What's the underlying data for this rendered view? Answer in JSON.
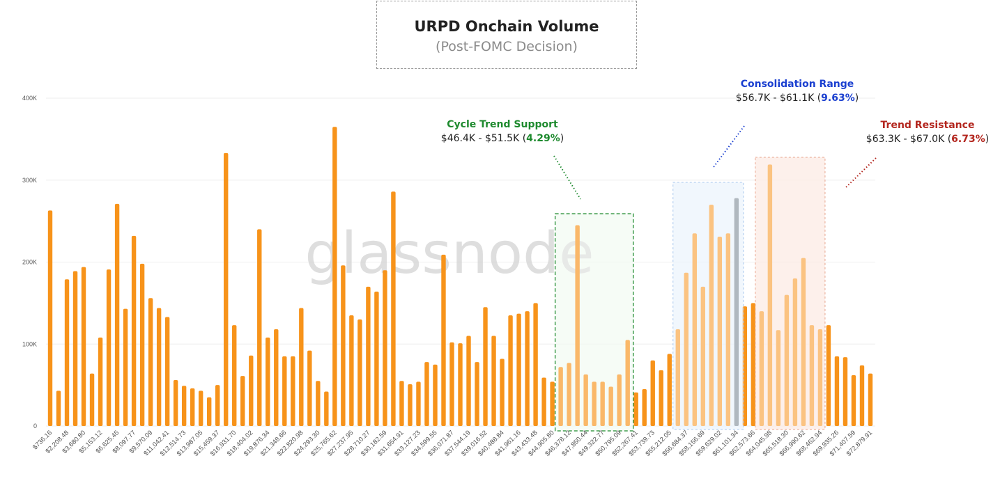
{
  "title": "URPD Onchain Volume",
  "subtitle": "(Post-FOMC Decision)",
  "watermark": "glassnode",
  "annotations": {
    "support": {
      "heading": "Cycle Trend Support",
      "range": "$46.4K - $51.5K (",
      "pct": "4.29%",
      "close": ")",
      "color": "#1e8a2e"
    },
    "consolidation": {
      "heading": "Consolidation Range",
      "range": "$56.7K - $61.1K (",
      "pct": "9.63%",
      "close": ")",
      "color": "#1a3fd0"
    },
    "resistance": {
      "heading": "Trend Resistance",
      "range": "$63.3K - $67.0K (",
      "pct": "6.73%",
      "close": ")",
      "color": "#b3261e"
    }
  },
  "colors": {
    "bar": "#f7931a",
    "current_bar": "#6f7e8b",
    "grid": "#eeeeee",
    "axis_text": "#555555"
  },
  "chart_data": {
    "type": "bar",
    "ylim": [
      0,
      400000
    ],
    "yticks": [
      {
        "value": 0,
        "label": "0"
      },
      {
        "value": 100000,
        "label": "100K"
      },
      {
        "value": 200000,
        "label": "200K"
      },
      {
        "value": 300000,
        "label": "300K"
      },
      {
        "value": 400000,
        "label": "400K"
      }
    ],
    "x_tick_labels": [
      "$736.16",
      "$2,208.48",
      "$3,680.80",
      "$5,153.12",
      "$6,625.45",
      "$8,097.77",
      "$9,570.09",
      "$11,042.41",
      "$12,514.73",
      "$13,987.05",
      "$15,459.37",
      "$16,931.70",
      "$18,404.02",
      "$19,876.34",
      "$21,348.66",
      "$22,820.98",
      "$24,293.30",
      "$25,765.62",
      "$27,237.95",
      "$28,710.27",
      "$30,182.59",
      "$31,654.91",
      "$33,127.23",
      "$34,599.55",
      "$36,071.87",
      "$37,544.19",
      "$39,016.52",
      "$40,488.84",
      "$41,961.16",
      "$43,433.48",
      "$44,905.80",
      "$46,378.12",
      "$47,850.44",
      "$49,322.77",
      "$50,795.09",
      "$52,267.41",
      "$53,739.73",
      "$55,212.05",
      "$56,684.37",
      "$58,156.69",
      "$59,629.02",
      "$61,101.34",
      "$62,573.66",
      "$64,045.98",
      "$65,518.30",
      "$66,990.62",
      "$68,462.94",
      "$69,935.26",
      "$71,407.59",
      "$72,879.91"
    ],
    "values": [
      263000,
      43000,
      179000,
      189000,
      194000,
      64000,
      108000,
      191000,
      271000,
      143000,
      232000,
      198000,
      156000,
      144000,
      133000,
      56000,
      49000,
      46000,
      43000,
      35000,
      50000,
      333000,
      123000,
      61000,
      86000,
      240000,
      108000,
      118000,
      85000,
      85000,
      144000,
      92000,
      55000,
      42000,
      365000,
      196000,
      135000,
      130000,
      170000,
      164000,
      190000,
      286000,
      55000,
      51000,
      54000,
      78000,
      75000,
      209000,
      102000,
      101000,
      110000,
      78000,
      145000,
      110000,
      82000,
      135000,
      137000,
      140000,
      150000,
      59000,
      54000,
      72000,
      77000,
      245000,
      63000,
      54000,
      54000,
      48000,
      63000,
      105000,
      41000,
      45000,
      80000,
      68000,
      88000,
      118000,
      187000,
      235000,
      170000,
      270000,
      231000,
      235000,
      278000,
      146000,
      150000,
      140000,
      319000,
      117000,
      160000,
      180000,
      205000,
      123000,
      118000,
      123000,
      85000,
      84000,
      62000,
      74000,
      64000
    ],
    "current_price_bar_index": 82,
    "highlighted_ranges": [
      {
        "name": "Cycle Trend Support",
        "from_index": 61,
        "to_index": 69
      },
      {
        "name": "Consolidation Range",
        "from_index": 75,
        "to_index": 82
      },
      {
        "name": "Trend Resistance",
        "from_index": 85,
        "to_index": 92
      }
    ]
  }
}
